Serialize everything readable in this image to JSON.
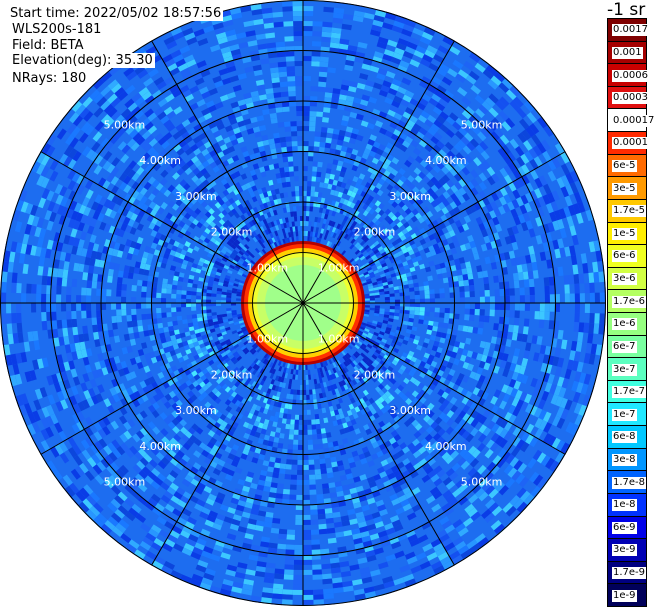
{
  "info": {
    "start_time": "Start time: 2022/05/02 18:57:56",
    "device": "WLS200s-181",
    "field": "Field: BETA",
    "elevation": "Elevation(deg): 35.30",
    "nrays": "NRays: 180"
  },
  "colorbar": {
    "title": "-1 sr",
    "levels": [
      {
        "label": "0.0017",
        "color": "#7f0000"
      },
      {
        "label": "0.001",
        "color": "#a50000"
      },
      {
        "label": "0.0006",
        "color": "#c80000"
      },
      {
        "label": "0.0003",
        "color": "#e01010"
      },
      {
        "label": "0.00017",
        "color": "#ffffff"
      },
      {
        "label": "0.0001",
        "color": "#ff2a00"
      },
      {
        "label": "6e-5",
        "color": "#ff6a00"
      },
      {
        "label": "3e-5",
        "color": "#ff9a00"
      },
      {
        "label": "1.7e-5",
        "color": "#ffc800"
      },
      {
        "label": "1e-5",
        "color": "#ffee00"
      },
      {
        "label": "6e-6",
        "color": "#f0ff20"
      },
      {
        "label": "3e-6",
        "color": "#d2ff44"
      },
      {
        "label": "1.7e-6",
        "color": "#b4ff62"
      },
      {
        "label": "1e-6",
        "color": "#96ff80"
      },
      {
        "label": "6e-7",
        "color": "#7affa0"
      },
      {
        "label": "3e-7",
        "color": "#5cffc0"
      },
      {
        "label": "1.7e-7",
        "color": "#40ffe0"
      },
      {
        "label": "1e-7",
        "color": "#20e8ff"
      },
      {
        "label": "6e-8",
        "color": "#00c8ff"
      },
      {
        "label": "3e-8",
        "color": "#0096ff"
      },
      {
        "label": "1.7e-8",
        "color": "#0064ff"
      },
      {
        "label": "1e-8",
        "color": "#0032ff"
      },
      {
        "label": "6e-9",
        "color": "#0000e8"
      },
      {
        "label": "3e-9",
        "color": "#0000b4"
      },
      {
        "label": "1.7e-9",
        "color": "#000080"
      },
      {
        "label": "1e-9",
        "color": "#00005a"
      }
    ]
  },
  "map": {
    "max_range_km": 6,
    "range_rings": [
      {
        "label": "1.00km",
        "km": 1
      },
      {
        "label": "2.00km",
        "km": 2
      },
      {
        "label": "3.00km",
        "km": 3
      },
      {
        "label": "4.00km",
        "km": 4
      },
      {
        "label": "5.00km",
        "km": 5
      }
    ],
    "spoke_step_deg": 30
  }
}
